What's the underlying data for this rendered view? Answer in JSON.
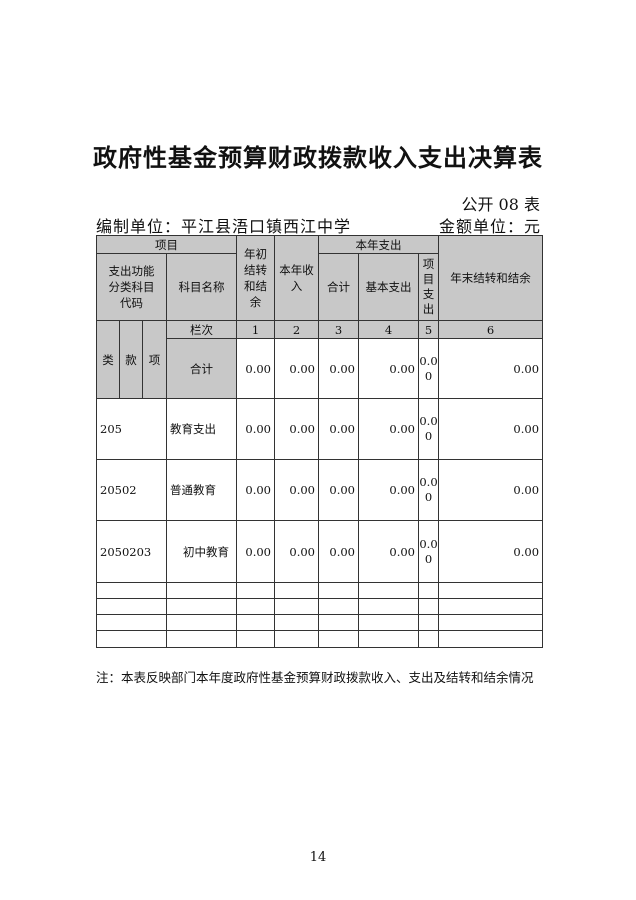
{
  "title": "政府性基金预算财政拨款收入支出决算表",
  "table_no": "公开 08 表",
  "unit": "编制单位：平江县浯口镇西江中学",
  "money_unit": "金额单位：元",
  "headers": {
    "item": "项目",
    "func_code": "支出功能分类科目代码",
    "subject_name": "科目名称",
    "begin_balance": "年初结转和结余",
    "income": "本年收入",
    "expense": "本年支出",
    "total": "合计",
    "basic": "基本支出",
    "project": "项目支出",
    "end_balance": "年末结转和结余",
    "lei": "类",
    "kuan": "款",
    "xiang": "项",
    "col_label": "栏次",
    "cols": [
      "1",
      "2",
      "3",
      "4",
      "5",
      "6"
    ]
  },
  "total_row": {
    "label": "合计",
    "values": [
      "0.00",
      "0.00",
      "0.00",
      "0.00",
      "0.00",
      "0.00"
    ]
  },
  "rows": [
    {
      "code": "205",
      "name": "教育支出",
      "values": [
        "0.00",
        "0.00",
        "0.00",
        "0.00",
        "0.00",
        "0.00"
      ]
    },
    {
      "code": "20502",
      "name": "普通教育",
      "values": [
        "0.00",
        "0.00",
        "0.00",
        "0.00",
        "0.00",
        "0.00"
      ]
    },
    {
      "code": "2050203",
      "name": "初中教育",
      "values": [
        "0.00",
        "0.00",
        "0.00",
        "0.00",
        "0.00",
        "0.00"
      ]
    }
  ],
  "note": "注：本表反映部门本年度政府性基金预算财政拨款收入、支出及结转和结余情况",
  "page_number": "14"
}
